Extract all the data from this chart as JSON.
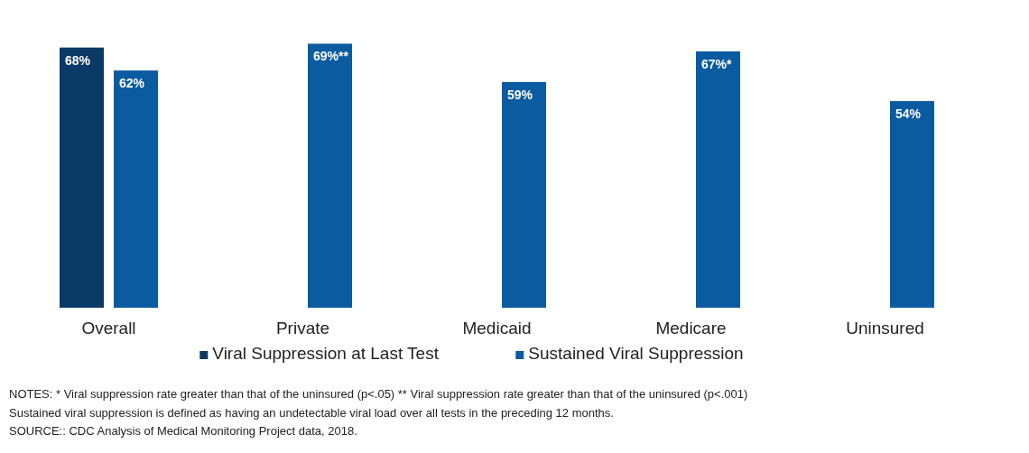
{
  "chart_data": {
    "type": "bar",
    "categories": [
      "Overall",
      "Private",
      "Medicaid",
      "Medicare",
      "Uninsured"
    ],
    "series": [
      {
        "name": "Viral Suppression at Last Test",
        "color": "#0c3a66",
        "values": [
          68,
          null,
          null,
          null,
          null
        ],
        "value_labels": [
          "68%",
          null,
          null,
          null,
          null
        ]
      },
      {
        "name": "Sustained Viral Suppression",
        "color": "#0a5ba0",
        "values": [
          62,
          69,
          59,
          67,
          54
        ],
        "value_labels": [
          "62%",
          "69%**",
          "59%",
          "67%*",
          "54%"
        ]
      }
    ],
    "legend": "bottom",
    "annotations": [
      "NOTES: * Viral suppression rate greater than that of the uninsured (p<.05) ** Viral suppression rate greater than that of the uninsured (p<.001)",
      "Sustained viral suppression is defined as having an undetectable viral load over all tests in the preceding 12 months.",
      "SOURCE:: CDC Analysis of Medical Monitoring Project data, 2018."
    ]
  }
}
